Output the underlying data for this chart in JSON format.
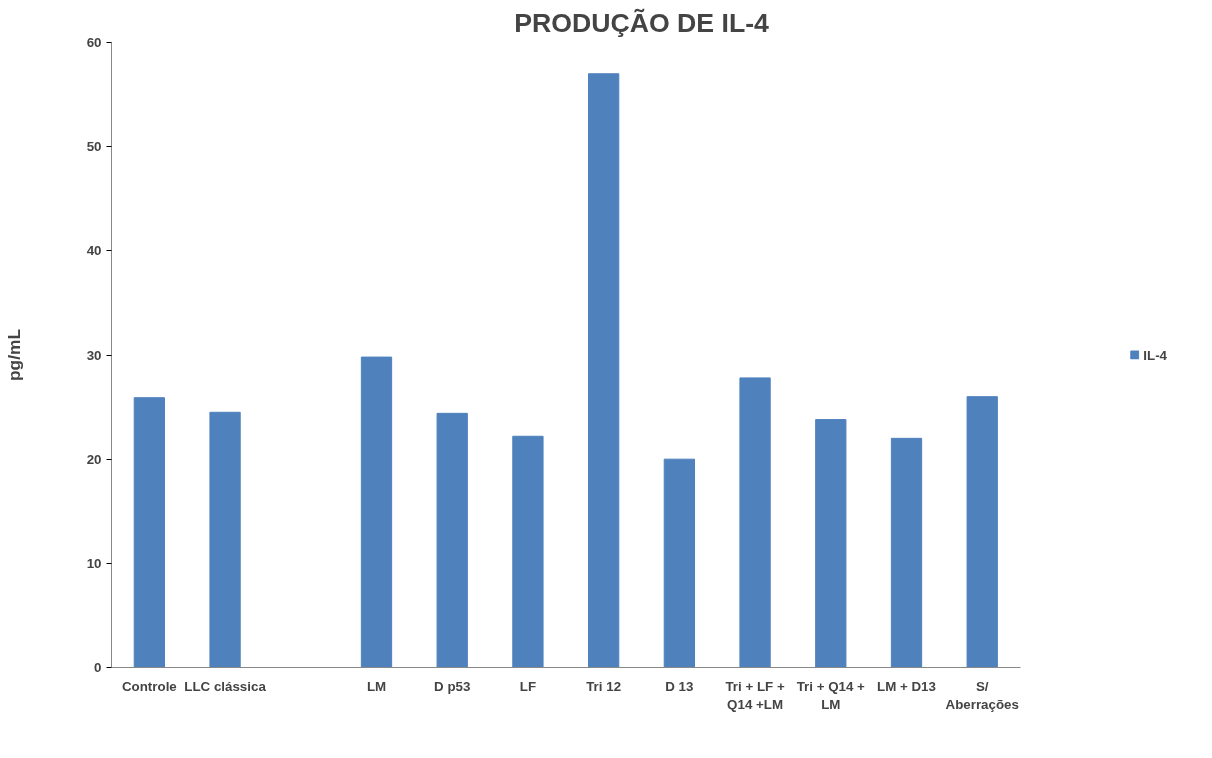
{
  "chart_data": {
    "type": "bar",
    "title": "PRODUÇÃO DE IL-4",
    "ylabel": "pg/mL",
    "categories": [
      "Controle",
      "LLC clássica",
      null,
      "LM",
      "D p53",
      "LF",
      "Tri 12",
      "D 13",
      "Tri + LF +\nQ14 +LM",
      "Tri + Q14 +\nLM",
      "LM + D13",
      "S/\nAberrações"
    ],
    "series": [
      {
        "name": "IL-4",
        "color": "#4f81bd",
        "values": [
          25.9,
          24.5,
          null,
          29.8,
          24.4,
          22.2,
          57.0,
          20.0,
          27.8,
          23.8,
          22.0,
          26.0
        ]
      }
    ],
    "ylim": [
      0,
      60
    ],
    "yticks": [
      0,
      10,
      20,
      30,
      40,
      50,
      60
    ],
    "grid": false,
    "legend": "right"
  }
}
